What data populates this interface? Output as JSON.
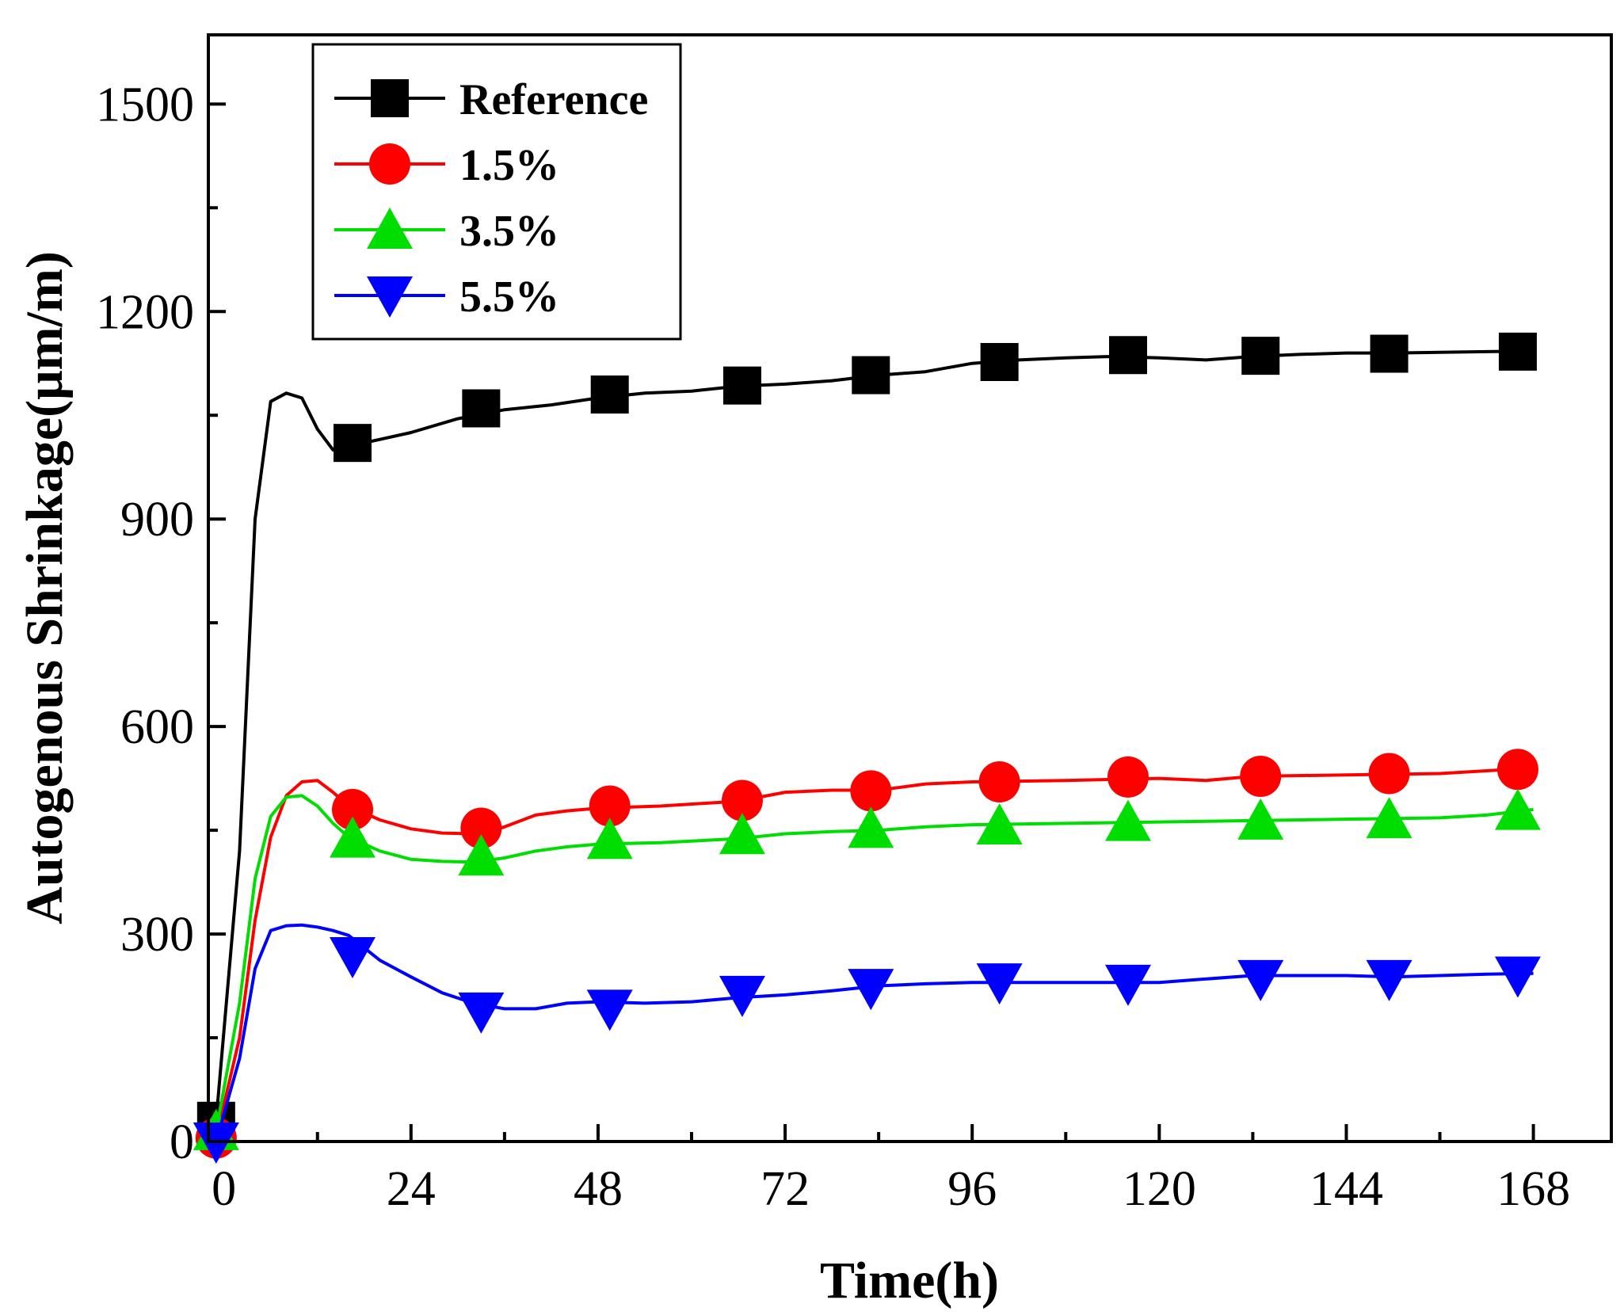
{
  "chart_data": {
    "type": "line",
    "xlabel": "Time(h)",
    "ylabel": "Autogenous Shrinkage(μm/m)",
    "xlim": [
      -2,
      178
    ],
    "ylim": [
      0,
      1600
    ],
    "xticks": [
      0,
      24,
      48,
      72,
      96,
      120,
      144,
      168
    ],
    "yticks": [
      0,
      300,
      600,
      900,
      1200,
      1500
    ],
    "grid": false,
    "legend_position": "top-left",
    "series": [
      {
        "name": "Reference",
        "color": "#000000",
        "marker": "square",
        "curve": [
          [
            -1,
            30
          ],
          [
            2,
            420
          ],
          [
            4,
            900
          ],
          [
            6,
            1070
          ],
          [
            8,
            1082
          ],
          [
            10,
            1075
          ],
          [
            12,
            1030
          ],
          [
            14,
            1000
          ],
          [
            16,
            995
          ],
          [
            18,
            1010
          ],
          [
            24,
            1025
          ],
          [
            30,
            1045
          ],
          [
            36,
            1058
          ],
          [
            42,
            1065
          ],
          [
            48,
            1075
          ],
          [
            54,
            1082
          ],
          [
            60,
            1085
          ],
          [
            66,
            1092
          ],
          [
            72,
            1095
          ],
          [
            78,
            1100
          ],
          [
            84,
            1108
          ],
          [
            90,
            1113
          ],
          [
            96,
            1125
          ],
          [
            102,
            1130
          ],
          [
            108,
            1133
          ],
          [
            114,
            1135
          ],
          [
            120,
            1133
          ],
          [
            126,
            1130
          ],
          [
            132,
            1135
          ],
          [
            138,
            1138
          ],
          [
            144,
            1140
          ],
          [
            150,
            1140
          ],
          [
            156,
            1141
          ],
          [
            162,
            1142
          ],
          [
            168,
            1143
          ]
        ],
        "markers": [
          [
            -1,
            30
          ],
          [
            16.5,
            1010
          ],
          [
            33,
            1060
          ],
          [
            49.5,
            1080
          ],
          [
            66.5,
            1093
          ],
          [
            83,
            1108
          ],
          [
            99.5,
            1127
          ],
          [
            116,
            1137
          ],
          [
            133,
            1136
          ],
          [
            149.5,
            1139
          ],
          [
            166,
            1142
          ]
        ]
      },
      {
        "name": "1.5%",
        "color": "#ff0000",
        "marker": "circle",
        "curve": [
          [
            -1,
            5
          ],
          [
            2,
            150
          ],
          [
            4,
            320
          ],
          [
            6,
            440
          ],
          [
            8,
            500
          ],
          [
            10,
            520
          ],
          [
            12,
            522
          ],
          [
            14,
            505
          ],
          [
            16,
            485
          ],
          [
            20,
            465
          ],
          [
            24,
            452
          ],
          [
            28,
            446
          ],
          [
            32,
            445
          ],
          [
            34,
            447
          ],
          [
            36,
            455
          ],
          [
            40,
            472
          ],
          [
            44,
            478
          ],
          [
            48,
            482
          ],
          [
            56,
            485
          ],
          [
            66,
            492
          ],
          [
            72,
            505
          ],
          [
            78,
            508
          ],
          [
            84,
            508
          ],
          [
            90,
            517
          ],
          [
            96,
            520
          ],
          [
            108,
            522
          ],
          [
            120,
            525
          ],
          [
            126,
            522
          ],
          [
            132,
            528
          ],
          [
            144,
            530
          ],
          [
            156,
            532
          ],
          [
            162,
            536
          ],
          [
            168,
            540
          ]
        ],
        "markers": [
          [
            -1,
            5
          ],
          [
            16.5,
            480
          ],
          [
            33,
            453
          ],
          [
            49.5,
            485
          ],
          [
            66.5,
            493
          ],
          [
            83,
            507
          ],
          [
            99.5,
            520
          ],
          [
            116,
            527
          ],
          [
            133,
            528
          ],
          [
            149.5,
            532
          ],
          [
            166,
            538
          ]
        ]
      },
      {
        "name": "3.5%",
        "color": "#00dd00",
        "marker": "triangle-up",
        "curve": [
          [
            -1,
            15
          ],
          [
            2,
            200
          ],
          [
            4,
            380
          ],
          [
            6,
            470
          ],
          [
            8,
            498
          ],
          [
            10,
            500
          ],
          [
            12,
            485
          ],
          [
            14,
            460
          ],
          [
            16,
            440
          ],
          [
            20,
            420
          ],
          [
            24,
            408
          ],
          [
            28,
            405
          ],
          [
            32,
            404
          ],
          [
            36,
            410
          ],
          [
            40,
            420
          ],
          [
            44,
            426
          ],
          [
            48,
            430
          ],
          [
            56,
            432
          ],
          [
            66,
            438
          ],
          [
            72,
            445
          ],
          [
            78,
            448
          ],
          [
            84,
            450
          ],
          [
            90,
            455
          ],
          [
            96,
            458
          ],
          [
            108,
            460
          ],
          [
            120,
            462
          ],
          [
            132,
            464
          ],
          [
            144,
            466
          ],
          [
            156,
            468
          ],
          [
            162,
            472
          ],
          [
            168,
            480
          ]
        ],
        "markers": [
          [
            -1,
            15
          ],
          [
            16.5,
            438
          ],
          [
            33,
            412
          ],
          [
            49.5,
            436
          ],
          [
            66.5,
            443
          ],
          [
            83,
            452
          ],
          [
            99.5,
            457
          ],
          [
            116,
            462
          ],
          [
            133,
            464
          ],
          [
            149.5,
            466
          ],
          [
            166,
            478
          ]
        ]
      },
      {
        "name": "5.5%",
        "color": "#0000ff",
        "marker": "triangle-down",
        "curve": [
          [
            -1,
            0
          ],
          [
            2,
            120
          ],
          [
            4,
            250
          ],
          [
            6,
            305
          ],
          [
            8,
            312
          ],
          [
            10,
            313
          ],
          [
            12,
            310
          ],
          [
            14,
            305
          ],
          [
            16,
            298
          ],
          [
            18,
            280
          ],
          [
            20,
            262
          ],
          [
            24,
            238
          ],
          [
            28,
            215
          ],
          [
            32,
            200
          ],
          [
            36,
            192
          ],
          [
            40,
            192
          ],
          [
            44,
            200
          ],
          [
            48,
            202
          ],
          [
            54,
            200
          ],
          [
            60,
            202
          ],
          [
            66,
            208
          ],
          [
            72,
            212
          ],
          [
            78,
            218
          ],
          [
            84,
            225
          ],
          [
            90,
            228
          ],
          [
            96,
            230
          ],
          [
            108,
            230
          ],
          [
            120,
            230
          ],
          [
            126,
            235
          ],
          [
            132,
            240
          ],
          [
            144,
            240
          ],
          [
            150,
            238
          ],
          [
            156,
            240
          ],
          [
            162,
            242
          ],
          [
            168,
            243
          ]
        ],
        "markers": [
          [
            -1,
            0
          ],
          [
            16.5,
            268
          ],
          [
            33,
            188
          ],
          [
            49.5,
            192
          ],
          [
            66.5,
            212
          ],
          [
            83,
            222
          ],
          [
            99.5,
            230
          ],
          [
            116,
            228
          ],
          [
            133,
            235
          ],
          [
            149.5,
            235
          ],
          [
            166,
            240
          ]
        ]
      }
    ]
  }
}
